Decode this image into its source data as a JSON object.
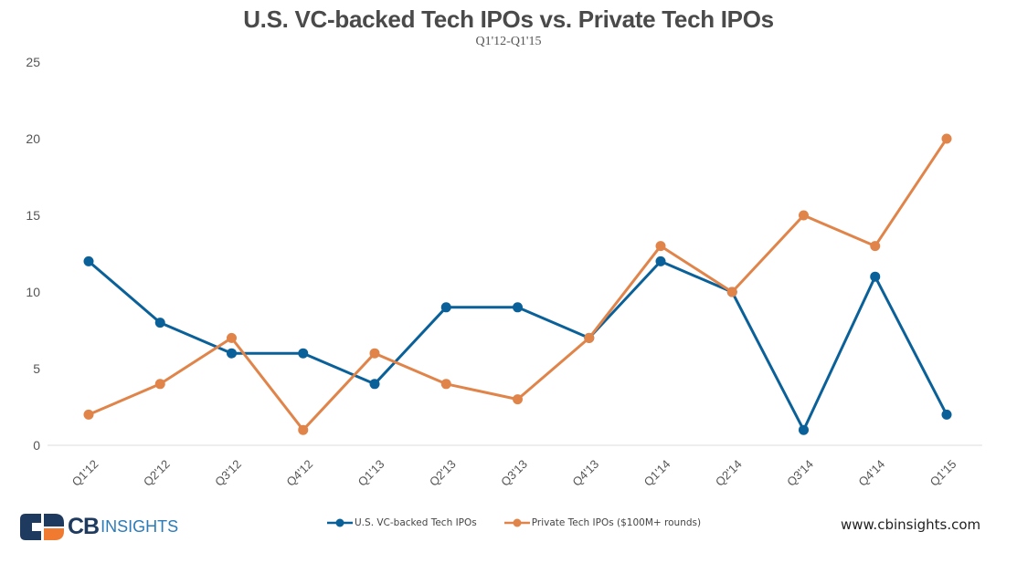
{
  "chart_data": {
    "type": "line",
    "title": "U.S. VC-backed Tech IPOs vs. Private Tech IPOs",
    "subtitle": "Q1'12-Q1'15",
    "xlabel": "",
    "ylabel": "",
    "ylim": [
      0,
      25
    ],
    "yticks": [
      0,
      5,
      10,
      15,
      20,
      25
    ],
    "grid": false,
    "legend_position": "bottom",
    "categories": [
      "Q1'12",
      "Q2'12",
      "Q3'12",
      "Q4'12",
      "Q1'13",
      "Q2'13",
      "Q3'13",
      "Q4'13",
      "Q1'14",
      "Q2'14",
      "Q3'14",
      "Q4'14",
      "Q1'15"
    ],
    "series": [
      {
        "name": "U.S. VC-backed Tech IPOs",
        "color": "#0a6098",
        "values": [
          12,
          8,
          6,
          6,
          4,
          9,
          9,
          7,
          12,
          10,
          1,
          11,
          2
        ]
      },
      {
        "name": "Private Tech IPOs ($100M+ rounds)",
        "color": "#e0844a",
        "values": [
          2,
          4,
          7,
          1,
          6,
          4,
          3,
          7,
          13,
          10,
          15,
          13,
          20
        ]
      }
    ]
  },
  "branding": {
    "logo_cb": "CB",
    "logo_insights": "INSIGHTS",
    "logo_colors": {
      "dark": "#1e3a5f",
      "orange": "#f07a30",
      "blue": "#2b7bb9"
    },
    "website": "www.cbinsights.com"
  }
}
